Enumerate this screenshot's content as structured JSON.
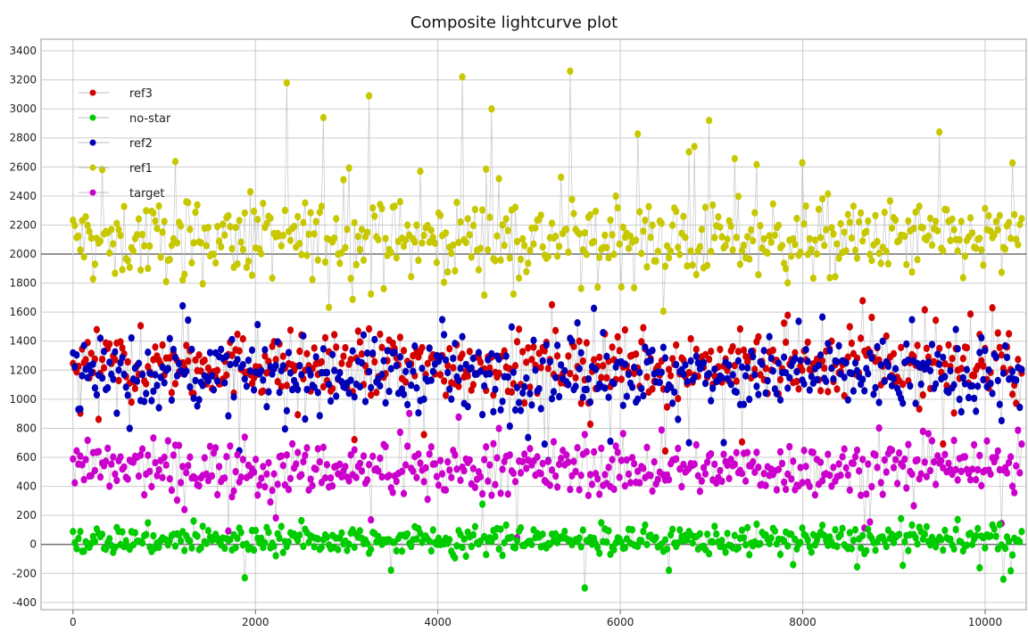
{
  "chart_data": {
    "type": "scatter",
    "title": "Composite lightcurve plot",
    "xlabel": "",
    "ylabel": "",
    "xlim": [
      -350,
      10450
    ],
    "ylim": [
      -450,
      3480
    ],
    "x_ticks": [
      0,
      2000,
      4000,
      6000,
      8000,
      10000
    ],
    "y_ticks": [
      -400,
      -200,
      0,
      200,
      400,
      600,
      800,
      1000,
      1200,
      1400,
      1600,
      1800,
      2000,
      2200,
      2400,
      2600,
      2800,
      3000,
      3200,
      3400
    ],
    "grid": true,
    "legend_position": "top-left",
    "legend": [
      "ref3",
      "no-star",
      "ref2",
      "ref1",
      "target"
    ],
    "series": [
      {
        "name": "ref1",
        "color": "#c8c800",
        "x_range": [
          0,
          10400
        ],
        "approx_mean": 2100,
        "approx_spread": 220,
        "peaks": [
          [
            2350,
            3180
          ],
          [
            3250,
            3090
          ],
          [
            4270,
            3220
          ],
          [
            4580,
            3000
          ],
          [
            5460,
            3260
          ],
          [
            6980,
            2920
          ],
          [
            2750,
            2940
          ],
          [
            9500,
            2840
          ]
        ],
        "trend": "flat"
      },
      {
        "name": "ref3",
        "color": "#d40000",
        "x_range": [
          0,
          10400
        ],
        "approx_mean": 1240,
        "approx_spread": 180,
        "trend": "flat"
      },
      {
        "name": "ref2",
        "color": "#0000b8",
        "x_range": [
          0,
          10400
        ],
        "approx_mean": 1170,
        "approx_spread": 200,
        "trend": "flat"
      },
      {
        "name": "target",
        "color": "#cc00cc",
        "x_range": [
          0,
          10400
        ],
        "approx_mean": 520,
        "approx_spread": 150,
        "trend": "flat"
      },
      {
        "name": "no-star",
        "color": "#00cc00",
        "x_range": [
          0,
          10400
        ],
        "approx_mean": 30,
        "approx_spread": 80,
        "lows": [
          [
            1880,
            -230
          ],
          [
            5620,
            -300
          ],
          [
            10200,
            -240
          ]
        ],
        "trend": "flat"
      }
    ],
    "draw_order": [
      "ref1",
      "ref3",
      "ref2",
      "target",
      "no-star"
    ],
    "colors": {
      "line": "#bdbdbd",
      "grid": "#cccccc",
      "zero_line": "#555555",
      "frame": "#9a9a9a"
    }
  }
}
